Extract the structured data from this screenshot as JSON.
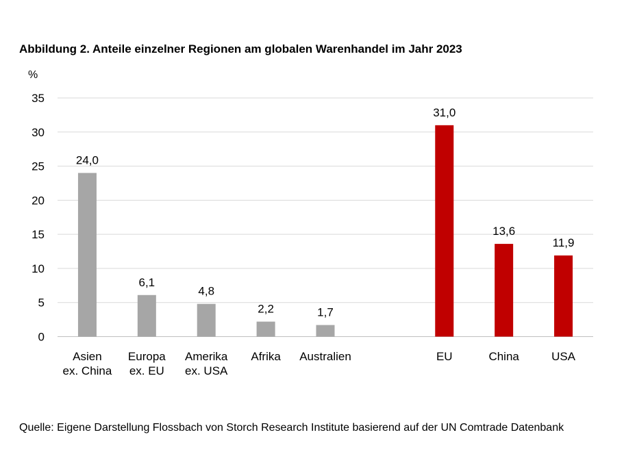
{
  "chart_data": {
    "type": "bar",
    "title": "Abbildung 2. Anteile einzelner Regionen am globalen Warenhandel im Jahr 2023",
    "ylabel": "%",
    "xlabel": "",
    "ylim": [
      0,
      35
    ],
    "yticks": [
      0,
      5,
      10,
      15,
      20,
      25,
      30,
      35
    ],
    "grid": true,
    "categories": [
      [
        "Asien",
        "ex. China"
      ],
      [
        "Europa",
        "ex. EU"
      ],
      [
        "Amerika",
        "ex. USA"
      ],
      [
        "Afrika"
      ],
      [
        "Australien"
      ],
      [
        "EU"
      ],
      [
        "China"
      ],
      [
        "USA"
      ]
    ],
    "values": [
      24.0,
      6.1,
      4.8,
      2.2,
      1.7,
      31.0,
      13.6,
      11.9
    ],
    "value_labels": [
      "24,0",
      "6,1",
      "4,8",
      "2,2",
      "1,7",
      "31,0",
      "13,6",
      "11,9"
    ],
    "bar_colors": [
      "#a6a6a6",
      "#a6a6a6",
      "#a6a6a6",
      "#a6a6a6",
      "#a6a6a6",
      "#c00000",
      "#c00000",
      "#c00000"
    ],
    "colors": {
      "grey": "#a6a6a6",
      "red": "#c00000",
      "grid": "#d9d9d9"
    }
  },
  "source": "Quelle: Eigene Darstellung Flossbach von Storch Research Institute basierend auf der UN Comtrade Datenbank"
}
